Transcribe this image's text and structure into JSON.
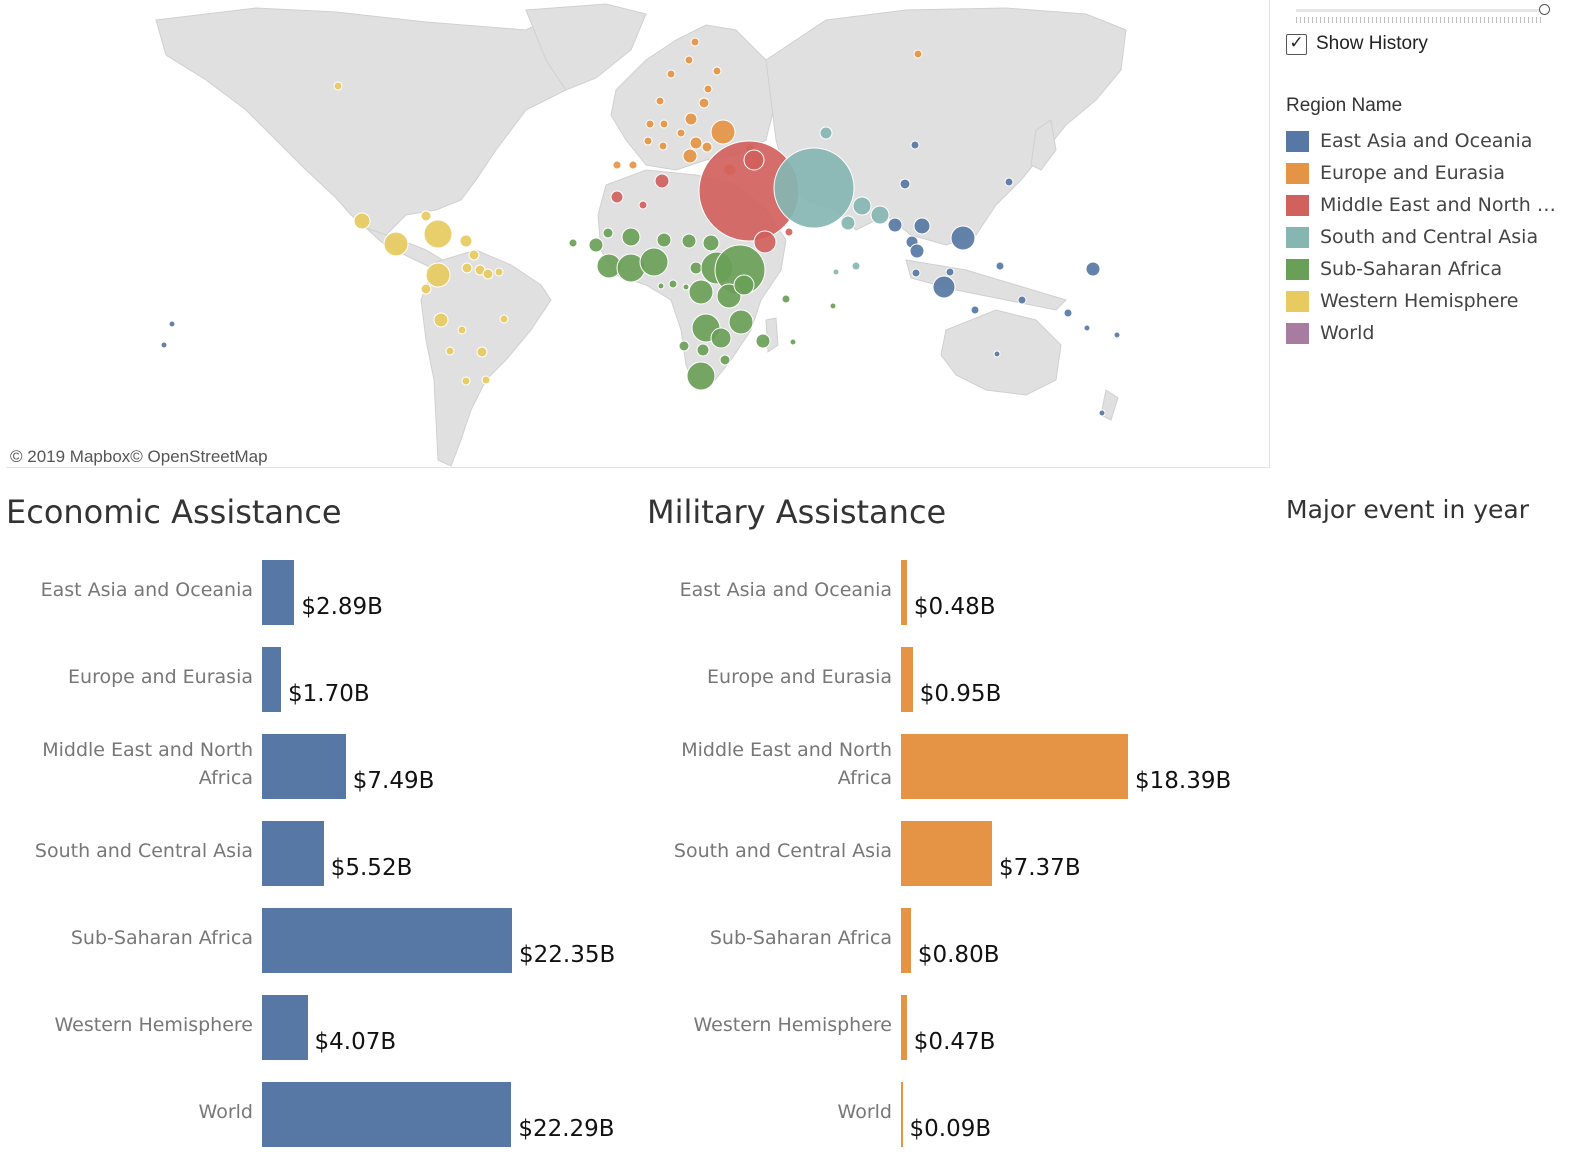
{
  "map": {
    "attribution": "© 2019 Mapbox© OpenStreetMap"
  },
  "controls": {
    "show_history_label": "Show History",
    "show_history_checked": true,
    "history_slider_value": 1.0
  },
  "legend": {
    "title": "Region Name",
    "items": [
      {
        "label": "East Asia and Oceania",
        "color": "#5778a4"
      },
      {
        "label": "Europe and Eurasia",
        "color": "#e49444"
      },
      {
        "label": "Middle East and North Africa",
        "color": "#d1615d"
      },
      {
        "label": "South and Central Asia",
        "color": "#85b6b2"
      },
      {
        "label": "Sub-Saharan Africa",
        "color": "#6a9f58"
      },
      {
        "label": "Western Hemisphere",
        "color": "#e7ca60"
      },
      {
        "label": "World",
        "color": "#a87c9f"
      }
    ]
  },
  "major_event_title": "Major event in year",
  "chart_data": [
    {
      "type": "bar",
      "title": "Economic Assistance",
      "orientation": "horizontal",
      "color": "#5778a4",
      "categories": [
        "East Asia and Oceania",
        "Europe and Eurasia",
        "Middle East and North Africa",
        "South and Central Asia",
        "Sub-Saharan Africa",
        "Western Hemisphere",
        "World"
      ],
      "values": [
        2.89,
        1.7,
        7.49,
        5.52,
        22.35,
        4.07,
        22.29
      ],
      "labels": [
        "$2.89B",
        "$1.70B",
        "$7.49B",
        "$5.52B",
        "$22.35B",
        "$4.07B",
        "$22.29B"
      ],
      "unit": "B USD"
    },
    {
      "type": "bar",
      "title": "Military Assistance",
      "orientation": "horizontal",
      "color": "#e49444",
      "categories": [
        "East Asia and Oceania",
        "Europe and Eurasia",
        "Middle East and North Africa",
        "South and Central Asia",
        "Sub-Saharan Africa",
        "Western Hemisphere",
        "World"
      ],
      "values": [
        0.48,
        0.95,
        18.39,
        7.37,
        0.8,
        0.47,
        0.09
      ],
      "labels": [
        "$0.48B",
        "$0.95B",
        "$18.39B",
        "$7.37B",
        "$0.80B",
        "$0.47B",
        "$0.09B"
      ],
      "unit": "B USD"
    }
  ]
}
